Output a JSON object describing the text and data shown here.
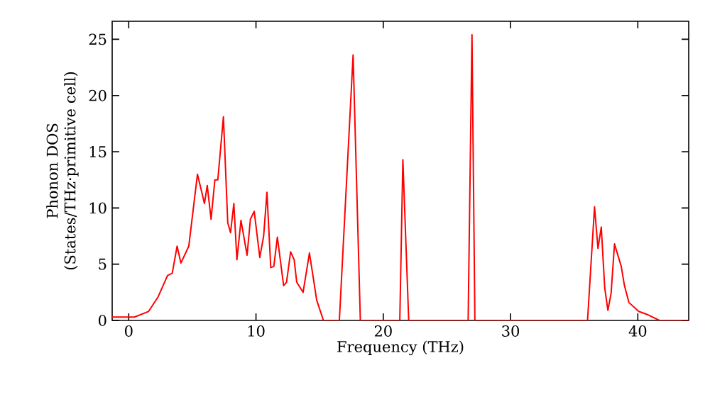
{
  "chart_data": {
    "type": "line",
    "xlabel": "Frequency (THz)",
    "ylabel": "Phonon DOS (States/THz·primitive cell)",
    "xlim": [
      -1.3,
      44
    ],
    "ylim": [
      0,
      26.6
    ],
    "xticks": [
      0,
      10,
      20,
      30,
      40
    ],
    "yticks": [
      0,
      5,
      10,
      15,
      20,
      25
    ],
    "grid": false,
    "marker": "none",
    "line_style": "solid",
    "series": [
      {
        "color": "#ff0000",
        "x": [
          -1.3,
          0.45,
          1.56,
          2.31,
          3.05,
          3.42,
          3.8,
          4.1,
          4.72,
          5.4,
          5.95,
          6.17,
          6.47,
          6.77,
          7.0,
          7.44,
          7.78,
          8.0,
          8.26,
          8.5,
          8.82,
          9.3,
          9.56,
          9.86,
          10.3,
          10.6,
          10.86,
          11.16,
          11.4,
          11.68,
          12.17,
          12.4,
          12.72,
          13.0,
          13.2,
          13.7,
          14.2,
          14.77,
          15.3,
          16.55,
          17.63,
          18.2,
          21.3,
          21.54,
          22.0,
          26.67,
          26.97,
          27.2,
          36.05,
          36.6,
          36.87,
          37.13,
          37.4,
          37.65,
          37.9,
          38.17,
          38.7,
          38.95,
          39.3,
          40.07,
          40.8,
          41.7,
          44
        ],
        "values": [
          0.3,
          0.3,
          0.8,
          2.1,
          4.0,
          4.2,
          6.6,
          5.1,
          6.6,
          13.0,
          10.4,
          12.0,
          9.0,
          12.5,
          12.5,
          18.1,
          8.7,
          7.8,
          10.4,
          5.4,
          8.9,
          5.8,
          9.0,
          9.7,
          5.6,
          7.5,
          11.4,
          4.7,
          4.8,
          7.4,
          3.1,
          3.4,
          6.1,
          5.4,
          3.4,
          2.5,
          6.0,
          1.8,
          0,
          0,
          23.6,
          0,
          0,
          14.3,
          0,
          0,
          25.4,
          0,
          0,
          10.1,
          6.4,
          8.3,
          2.9,
          0.9,
          2.4,
          6.8,
          4.8,
          3.1,
          1.6,
          0.8,
          0.5,
          0,
          0
        ]
      }
    ]
  }
}
